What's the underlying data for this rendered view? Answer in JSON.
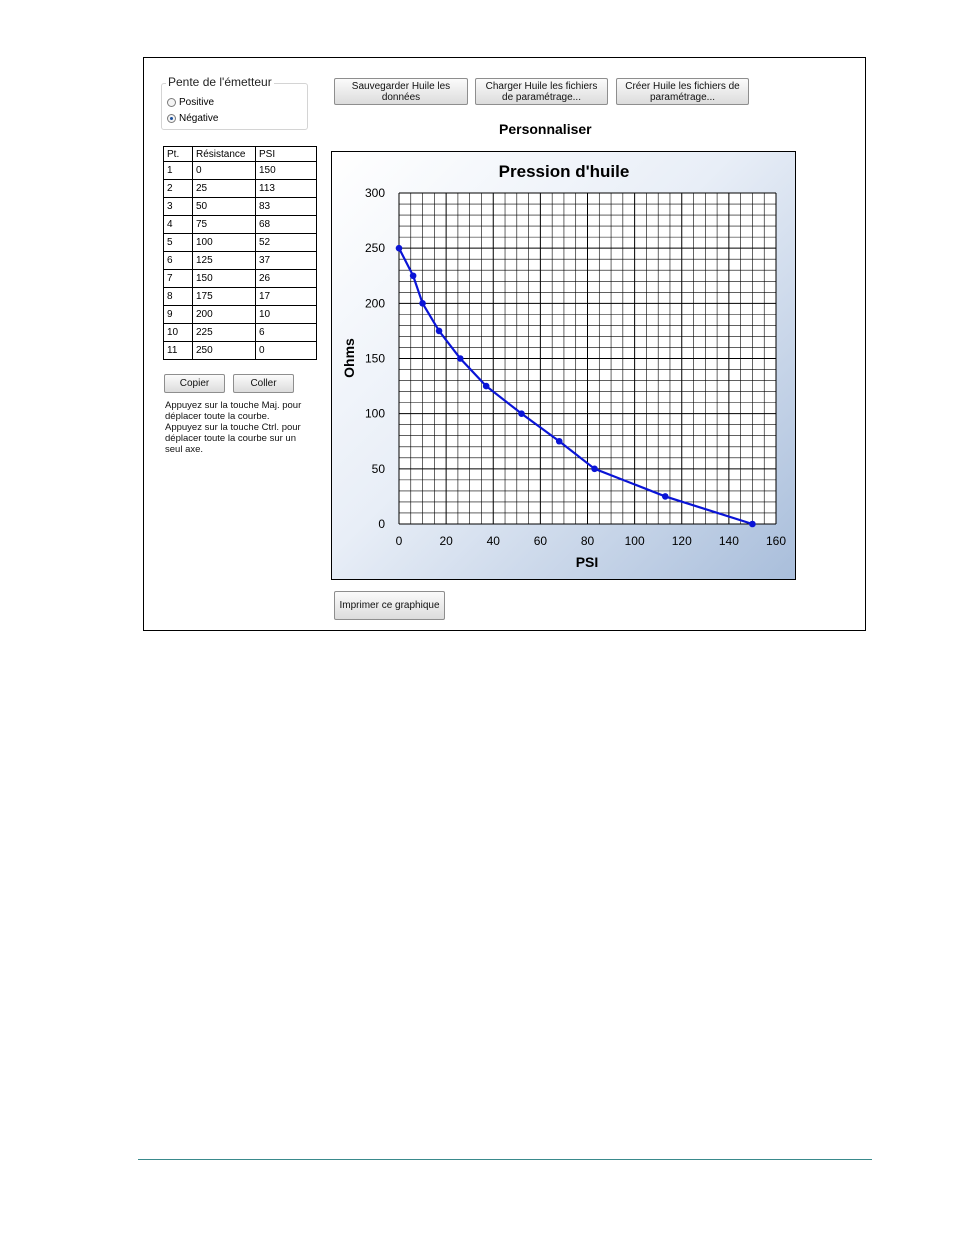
{
  "slope_group": {
    "title": "Pente de l'émetteur",
    "options": [
      "Positive",
      "Négative"
    ],
    "selected": "Négative"
  },
  "table": {
    "headers": [
      "Pt.",
      "Résistance",
      "PSI"
    ],
    "rows": [
      [
        "1",
        "0",
        "150"
      ],
      [
        "2",
        "25",
        "113"
      ],
      [
        "3",
        "50",
        "83"
      ],
      [
        "4",
        "75",
        "68"
      ],
      [
        "5",
        "100",
        "52"
      ],
      [
        "6",
        "125",
        "37"
      ],
      [
        "7",
        "150",
        "26"
      ],
      [
        "8",
        "175",
        "17"
      ],
      [
        "9",
        "200",
        "10"
      ],
      [
        "10",
        "225",
        "6"
      ],
      [
        "11",
        "250",
        "0"
      ]
    ]
  },
  "buttons": {
    "copy": "Copier",
    "paste": "Coller",
    "save": "Sauvegarder Huile les données",
    "load": "Charger Huile les fichiers de paramétrage...",
    "create": "Créer Huile les fichiers de paramétrage...",
    "print": "Imprimer ce graphique"
  },
  "help_text": "Appuyez sur la touche Maj. pour déplacer toute la courbe. Appuyez sur la touche Ctrl. pour déplacer toute la courbe sur un seul axe.",
  "section_title": "Personnaliser",
  "chart_data": {
    "type": "line",
    "title": "Pression d'huile",
    "xlabel": "PSI",
    "ylabel": "Ohms",
    "xlim": [
      0,
      160
    ],
    "ylim": [
      0,
      300
    ],
    "xticks": [
      0,
      20,
      40,
      60,
      80,
      100,
      120,
      140,
      160
    ],
    "yticks": [
      0,
      50,
      100,
      150,
      200,
      250,
      300
    ],
    "grid": true,
    "series": [
      {
        "x": [
          150,
          113,
          83,
          68,
          52,
          37,
          26,
          17,
          10,
          6,
          0
        ],
        "y": [
          0,
          25,
          50,
          75,
          100,
          125,
          150,
          175,
          200,
          225,
          250
        ]
      }
    ],
    "line_color": "#0a14d6"
  }
}
